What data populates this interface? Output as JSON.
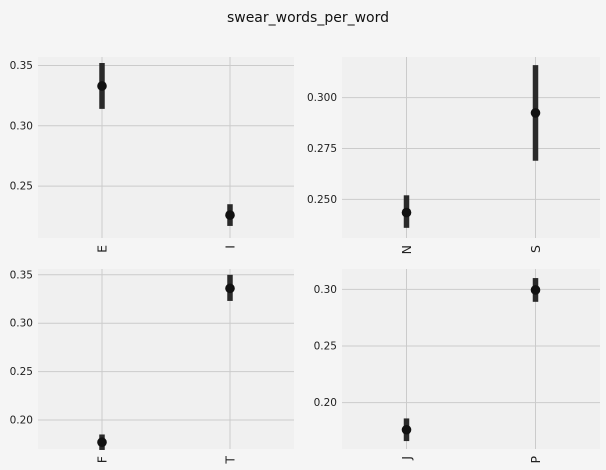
{
  "title": "swear_words_per_word",
  "colors": {
    "page_background": "#f5f5f5",
    "axes_background": "#f0f0f0",
    "grid": "#cbcbcb",
    "mark": "#111111",
    "errorbar": "#2a2a2a"
  },
  "chart_data": [
    {
      "type": "scatter",
      "grid": true,
      "categories": [
        "E",
        "I"
      ],
      "values": [
        0.333,
        0.226
      ],
      "error_low": [
        0.314,
        0.217
      ],
      "error_high": [
        0.352,
        0.235
      ],
      "ylim": [
        0.207,
        0.357
      ],
      "yticks": [
        0.25,
        0.3,
        0.35
      ],
      "ytick_labels": [
        "0.25",
        "0.30",
        "0.35"
      ]
    },
    {
      "type": "scatter",
      "grid": true,
      "categories": [
        "N",
        "S"
      ],
      "values": [
        0.2435,
        0.2925
      ],
      "error_low": [
        0.236,
        0.269
      ],
      "error_high": [
        0.252,
        0.316
      ],
      "ylim": [
        0.231,
        0.32
      ],
      "yticks": [
        0.25,
        0.275,
        0.3
      ],
      "ytick_labels": [
        "0.250",
        "0.275",
        "0.300"
      ]
    },
    {
      "type": "scatter",
      "grid": true,
      "categories": [
        "F",
        "T"
      ],
      "values": [
        0.177,
        0.336
      ],
      "error_low": [
        0.169,
        0.323
      ],
      "error_high": [
        0.185,
        0.35
      ],
      "ylim": [
        0.17,
        0.356
      ],
      "yticks": [
        0.2,
        0.25,
        0.3,
        0.35
      ],
      "ytick_labels": [
        "0.20",
        "0.25",
        "0.30",
        "0.35"
      ]
    },
    {
      "type": "scatter",
      "grid": true,
      "categories": [
        "J",
        "P"
      ],
      "values": [
        0.176,
        0.2995
      ],
      "error_low": [
        0.166,
        0.289
      ],
      "error_high": [
        0.186,
        0.31
      ],
      "ylim": [
        0.159,
        0.318
      ],
      "yticks": [
        0.2,
        0.25,
        0.3
      ],
      "ytick_labels": [
        "0.20",
        "0.25",
        "0.30"
      ]
    }
  ]
}
